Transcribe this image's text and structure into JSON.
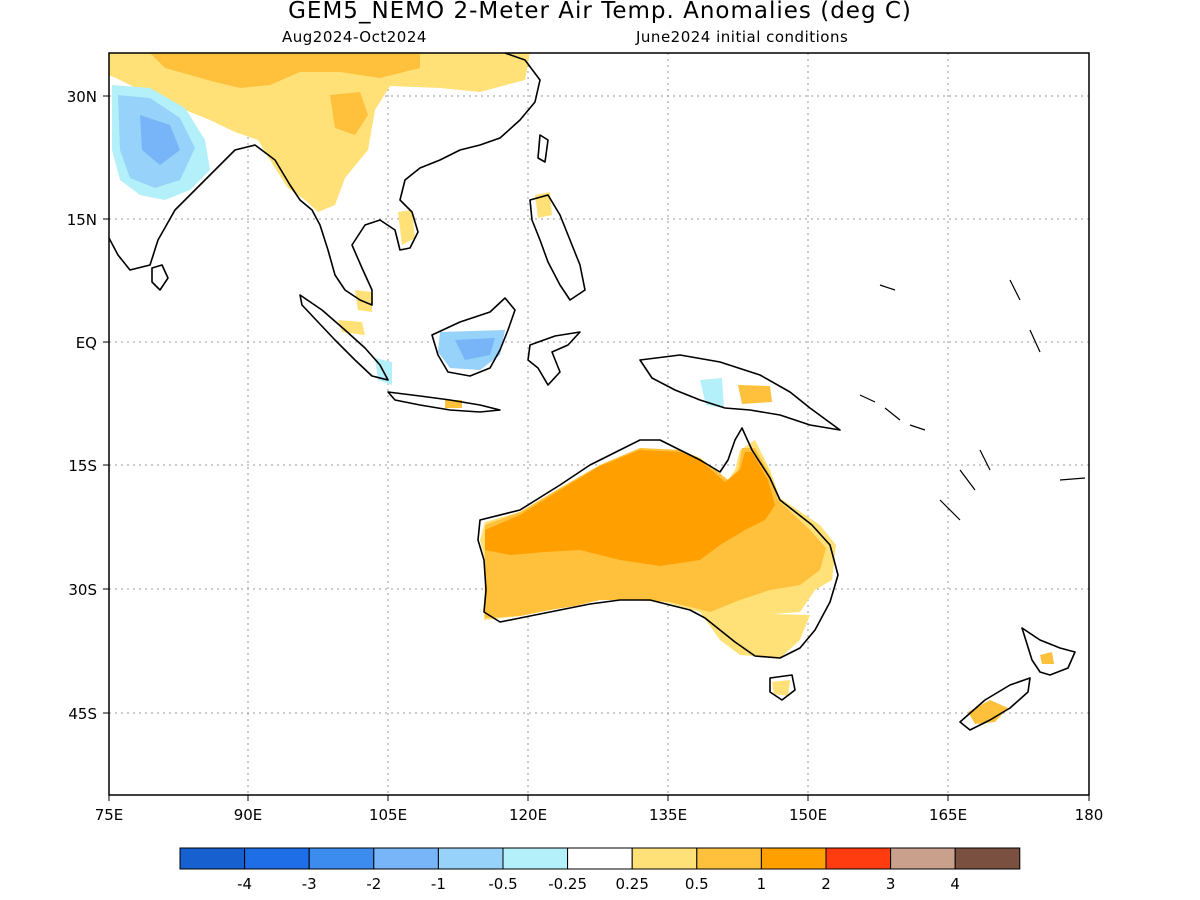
{
  "title": "GEM5_NEMO 2-Meter Air Temp. Anomalies (deg C)",
  "period": "Aug2024-Oct2024",
  "initial_conditions": "June2024 initial conditions",
  "x_ticks": [
    "75E",
    "90E",
    "105E",
    "120E",
    "135E",
    "150E",
    "165E",
    "180"
  ],
  "y_ticks": [
    "30N",
    "15N",
    "EQ",
    "15S",
    "30S",
    "45S"
  ],
  "colorbar": {
    "colors": [
      "#1660d0",
      "#1e6ee8",
      "#3c8cf0",
      "#78b4f8",
      "#96d2fa",
      "#b4f0fa",
      "#ffffff",
      "#ffe178",
      "#ffc03c",
      "#ffa000",
      "#ff3c10",
      "#c8a08c",
      "#7a5040"
    ],
    "labels": [
      "-4",
      "-3",
      "-2",
      "-1",
      "-0.5",
      "-0.25",
      "0.25",
      "0.5",
      "1",
      "2",
      "3",
      "4"
    ]
  }
}
